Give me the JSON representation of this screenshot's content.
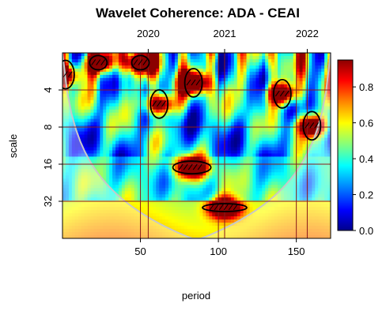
{
  "chart_data": {
    "type": "heatmap",
    "title": "Wavelet Coherence: ADA - CEAI",
    "xlabel": "period",
    "ylabel": "scale",
    "x_ticks": [
      50,
      100,
      150
    ],
    "xlim": [
      0,
      172
    ],
    "y_ticks": [
      4,
      8,
      16,
      32
    ],
    "ylim": [
      2,
      64
    ],
    "y_scale": "log2",
    "top_axis_ticks": [
      {
        "label": "2020",
        "x": 55
      },
      {
        "label": "2021",
        "x": 104
      },
      {
        "label": "2022",
        "x": 157
      }
    ],
    "colorbar": {
      "range": [
        0.0,
        0.95
      ],
      "ticks": [
        0.0,
        0.2,
        0.4,
        0.6,
        0.8
      ],
      "colors": [
        "#00008b",
        "#0000ff",
        "#0080ff",
        "#00ffff",
        "#80ff80",
        "#ffff00",
        "#ff8000",
        "#ff0000",
        "#8b0000"
      ]
    },
    "significant_regions": [
      {
        "x": 83,
        "scale": 17,
        "value": 0.93
      },
      {
        "x": 104,
        "scale": 36,
        "value": 0.94
      },
      {
        "x": 84,
        "scale": 3.5,
        "value": 0.92
      },
      {
        "x": 62,
        "scale": 5.2,
        "value": 0.9
      },
      {
        "x": 141,
        "scale": 4.3,
        "value": 0.88
      },
      {
        "x": 160,
        "scale": 7.8,
        "value": 0.92
      },
      {
        "x": 23,
        "scale": 2.4,
        "value": 0.88
      },
      {
        "x": 50,
        "scale": 2.4,
        "value": 0.88
      },
      {
        "x": 2,
        "scale": 3,
        "value": 0.85
      }
    ]
  }
}
